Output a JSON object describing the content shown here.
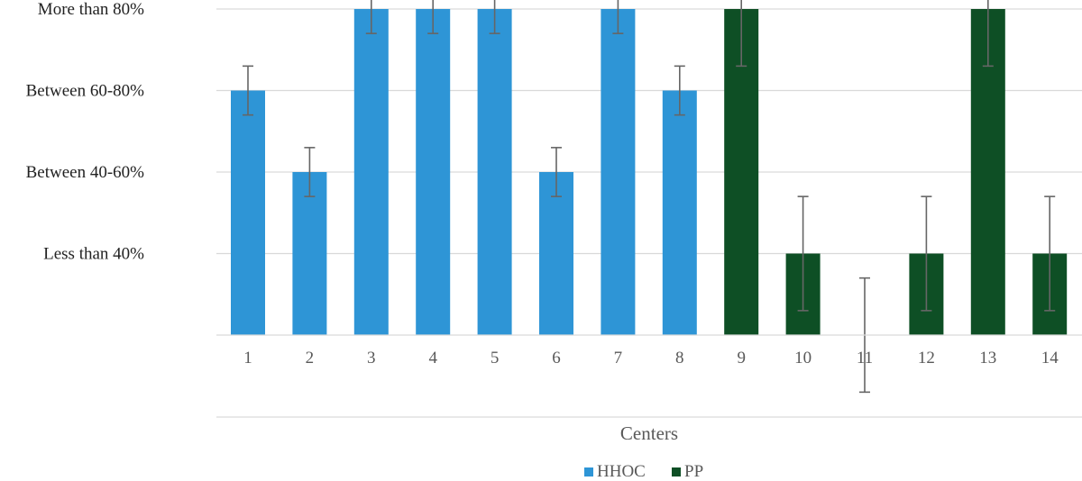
{
  "chart_data": {
    "type": "bar",
    "title": "",
    "xlabel": "Centers",
    "ylabel": "",
    "y_categories": [
      "Less than 40%",
      "Between 40-60%",
      "Between 60-80%",
      "More than 80%"
    ],
    "ylim": [
      0,
      4
    ],
    "grid": true,
    "legend_position": "bottom-center",
    "categories": [
      "1",
      "2",
      "3",
      "4",
      "5",
      "6",
      "7",
      "8",
      "9",
      "10",
      "11",
      "12",
      "13",
      "14"
    ],
    "series": [
      {
        "name": "HHOC",
        "color": "#2e95d6",
        "values": [
          3,
          2,
          4,
          4,
          4,
          2,
          4,
          3,
          null,
          null,
          null,
          null,
          null,
          null
        ],
        "error": [
          0.3,
          0.3,
          0.3,
          0.3,
          0.3,
          0.3,
          0.3,
          0.3,
          null,
          null,
          null,
          null,
          null,
          null
        ]
      },
      {
        "name": "PP",
        "color": "#0e4f25",
        "values": [
          null,
          null,
          null,
          null,
          null,
          null,
          null,
          null,
          4,
          1,
          0,
          1,
          4,
          1
        ],
        "error": [
          null,
          null,
          null,
          null,
          null,
          null,
          null,
          null,
          0.7,
          0.7,
          0.7,
          0.7,
          0.7,
          0.7
        ]
      }
    ]
  }
}
